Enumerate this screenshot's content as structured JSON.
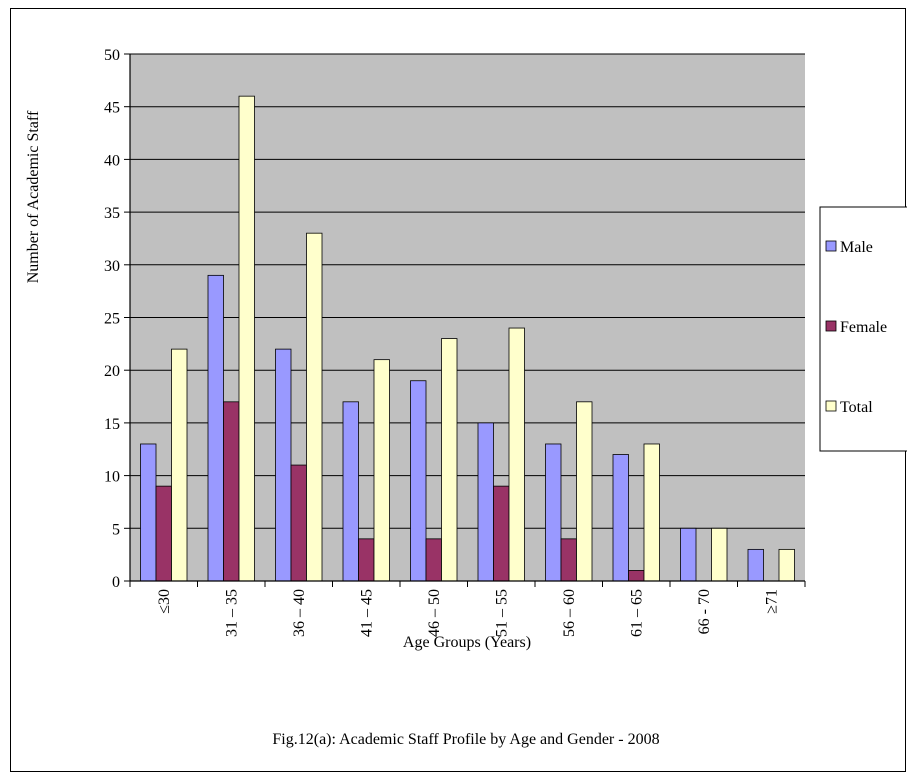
{
  "chart_data": {
    "type": "bar",
    "title": "Fig.12(a): Academic Staff Profile by Age and Gender - 2008",
    "xlabel": "Age Groups (Years)",
    "ylabel": "Number of Academic Staff",
    "categories": [
      "≤30",
      "31 – 35",
      "36 – 40",
      "41 – 45",
      "46 – 50",
      "51 – 55",
      "56 – 60",
      "61 – 65",
      "66  - 70",
      "≥71"
    ],
    "ylim": [
      0,
      50
    ],
    "yticks": [
      0,
      5,
      10,
      15,
      20,
      25,
      30,
      35,
      40,
      45,
      50
    ],
    "grid": true,
    "legend_position": "right",
    "series": [
      {
        "name": "Male",
        "color": "#9999ff",
        "values": [
          13,
          29,
          22,
          17,
          19,
          15,
          13,
          12,
          5,
          3
        ]
      },
      {
        "name": "Female",
        "color": "#993366",
        "values": [
          9,
          17,
          11,
          4,
          4,
          9,
          4,
          1,
          0,
          0
        ]
      },
      {
        "name": "Total",
        "color": "#ffffcc",
        "values": [
          22,
          46,
          33,
          21,
          23,
          24,
          17,
          13,
          5,
          3
        ]
      }
    ],
    "plot_background": "#c0c0c0"
  }
}
